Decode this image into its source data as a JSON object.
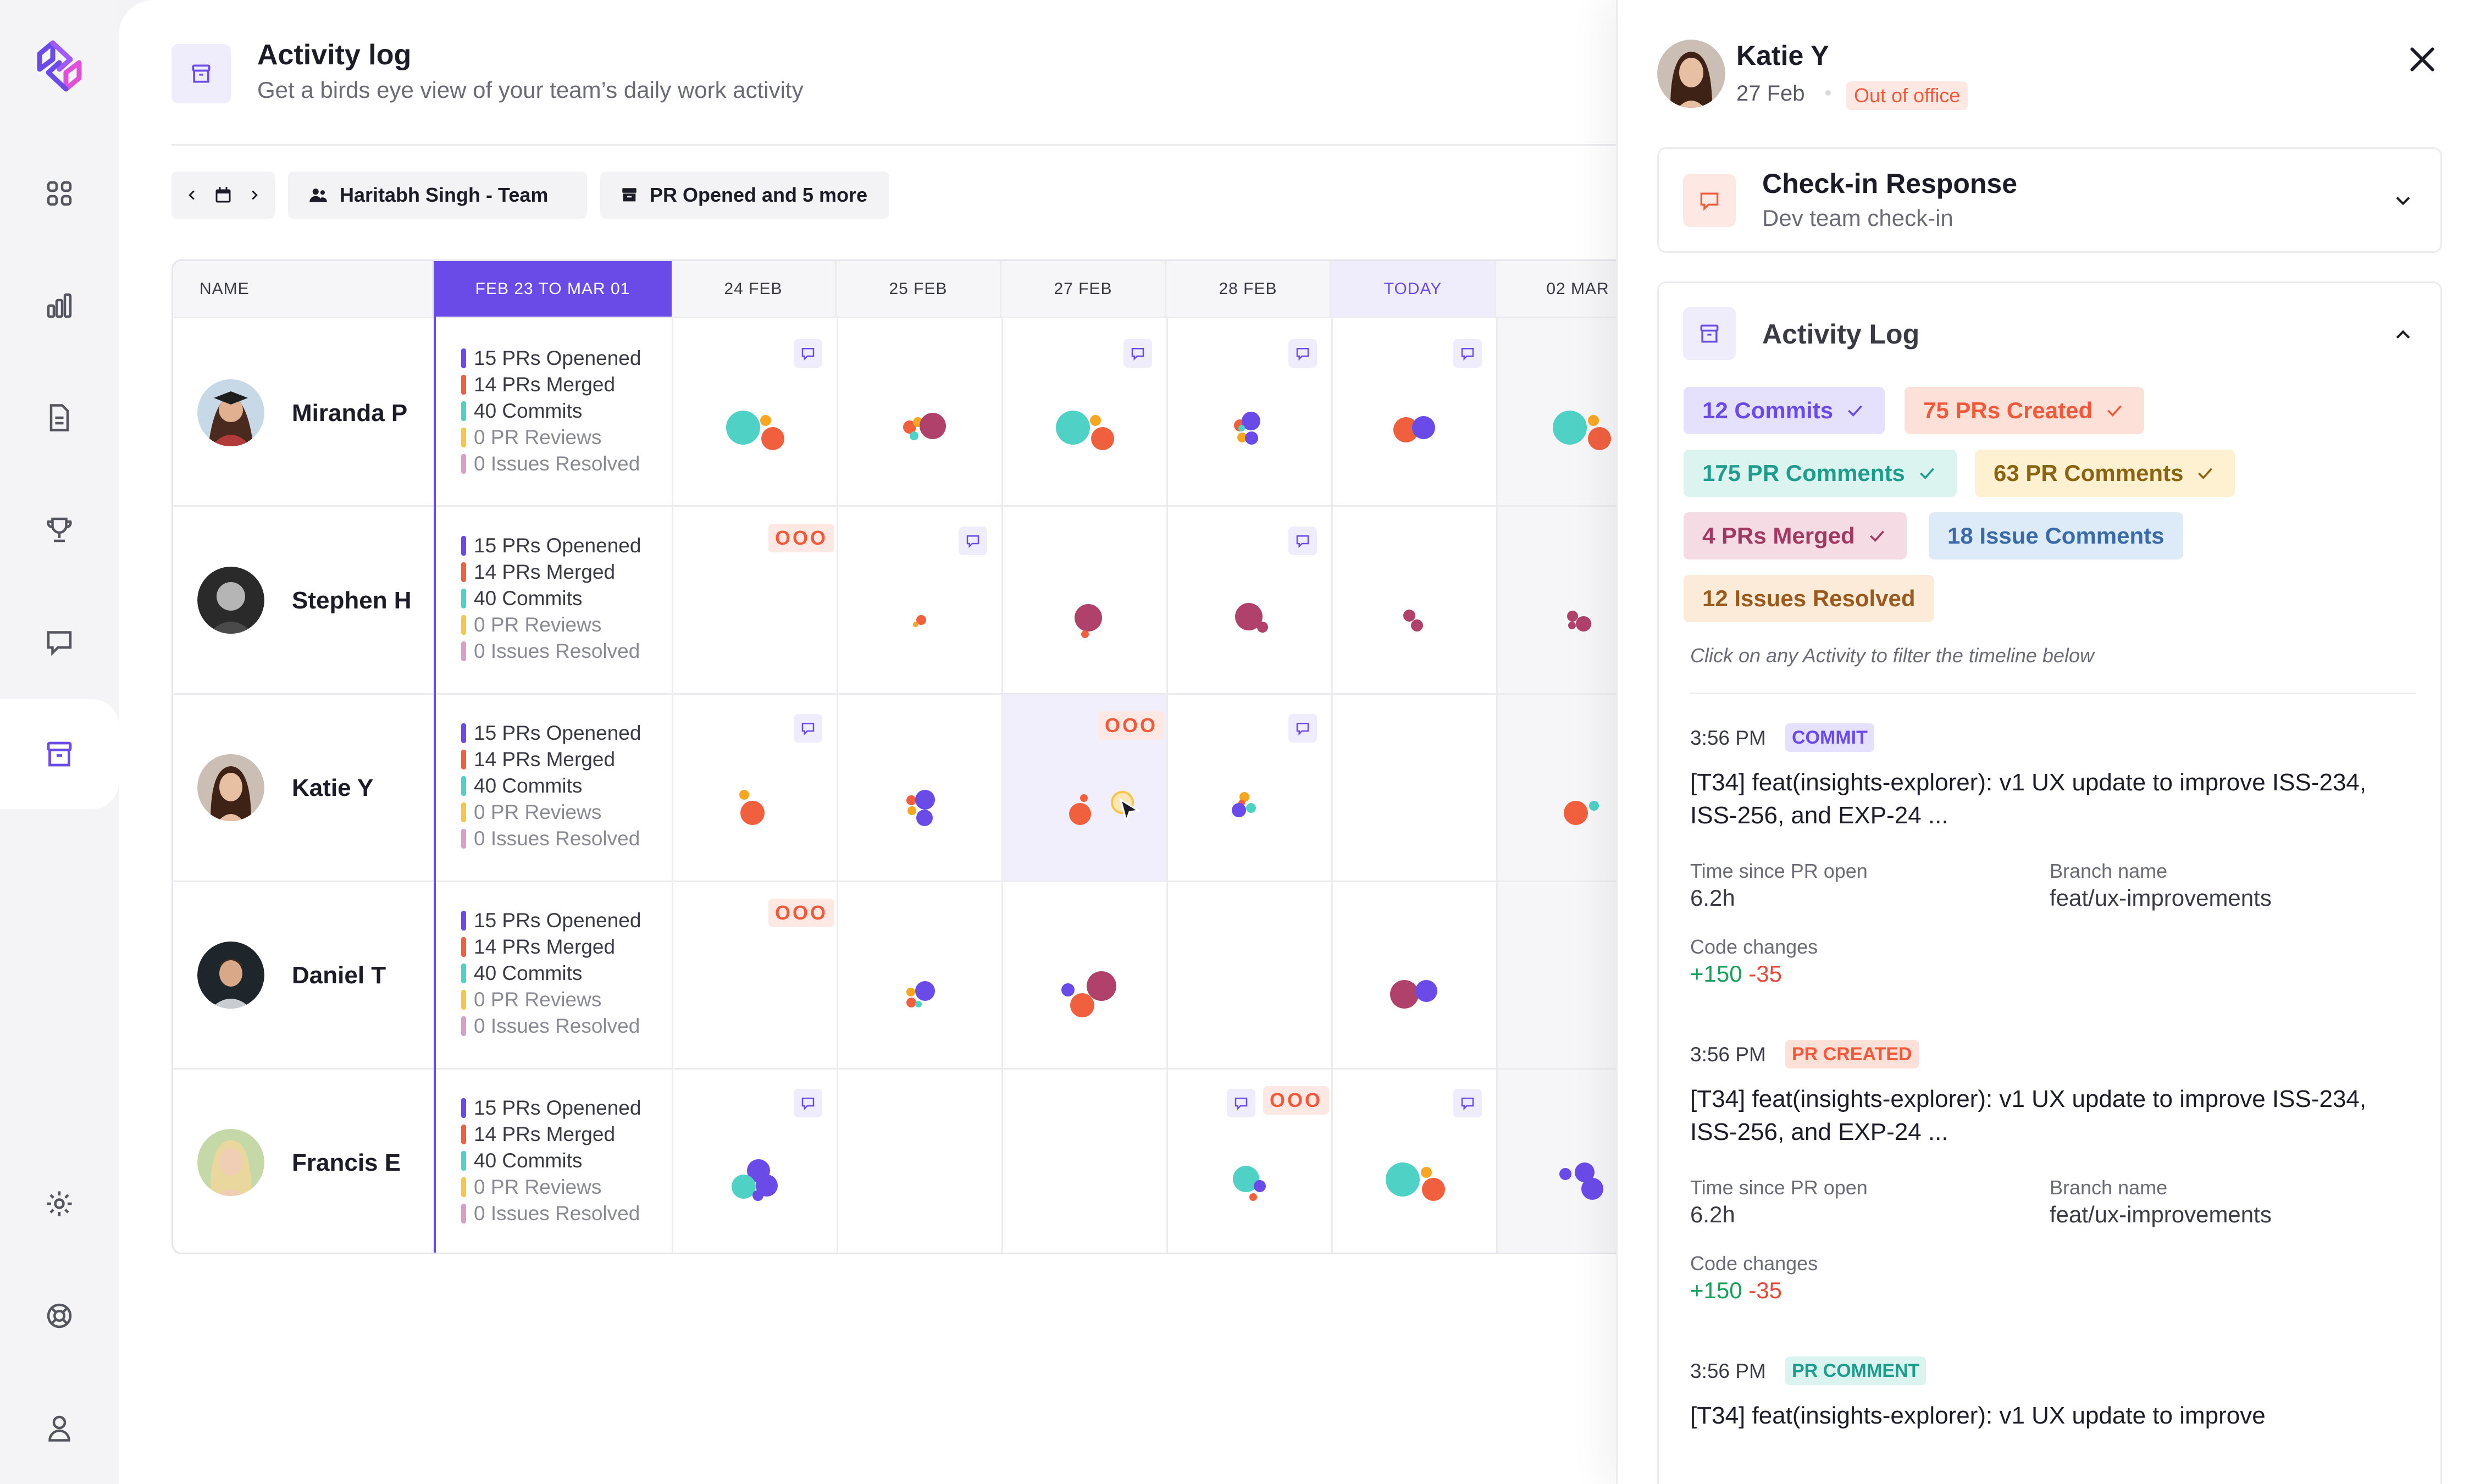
{
  "header": {
    "title": "Activity log",
    "subtitle": "Get a birds eye view of your team’s daily work activity"
  },
  "toolbar": {
    "team": "Haritabh Singh - Team",
    "filter": "PR Opened and 5 more"
  },
  "grid": {
    "name_col": "NAME",
    "week_col": "FEB 23 TO MAR 01",
    "days": [
      "24 FEB",
      "25 FEB",
      "27 FEB",
      "28 FEB",
      "TODAY",
      "02 MAR"
    ],
    "ooo_label": "OOO",
    "stat_colors": [
      "#6b4be8",
      "#f0603f",
      "#4fd1c5",
      "#f6c64a",
      "#d7a0c8"
    ],
    "rows": [
      {
        "name": "Miranda P",
        "stats": [
          "15 PRs Openened",
          "14 PRs Merged",
          "40 Commits",
          "0 PR Reviews",
          "0 Issues Resolved"
        ]
      },
      {
        "name": "Stephen H",
        "stats": [
          "15 PRs Openened",
          "14 PRs Merged",
          "40 Commits",
          "0 PR Reviews",
          "0 Issues Resolved"
        ]
      },
      {
        "name": "Katie Y",
        "stats": [
          "15 PRs Openened",
          "14 PRs Merged",
          "40 Commits",
          "0 PR Reviews",
          "0 Issues Resolved"
        ]
      },
      {
        "name": "Daniel T",
        "stats": [
          "15 PRs Openened",
          "14 PRs Merged",
          "40 Commits",
          "0 PR Reviews",
          "0 Issues Resolved"
        ]
      },
      {
        "name": "Francis E",
        "stats": [
          "15 PRs Openened",
          "14 PRs Merged",
          "40 Commits",
          "0 PR Reviews",
          "0 Issues Resolved"
        ]
      }
    ]
  },
  "panel": {
    "name": "Katie Y",
    "date": "27 Feb",
    "status": "Out of office",
    "checkin": {
      "title": "Check-in Response",
      "subtitle": "Dev team check-in"
    },
    "activity": {
      "title": "Activity Log",
      "pills": [
        "12 Commits",
        "75 PRs Created",
        "175 PR Comments",
        "63 PR Comments",
        "4 PRs Merged",
        "18 Issue Comments",
        "12 Issues Resolved"
      ],
      "hint": "Click on any Activity to filter the timeline below"
    },
    "events": [
      {
        "time": "3:56 PM",
        "type": "COMMIT",
        "title": "[T34] feat(insights-explorer): v1 UX update to improve ISS-234, ISS-256, and EXP-24 ...",
        "since_label": "Time since PR open",
        "since": "6.2h",
        "branch_label": "Branch name",
        "branch": "feat/ux-improvements",
        "changes_label": "Code changes",
        "added": "+150",
        "removed": "-35"
      },
      {
        "time": "3:56 PM",
        "type": "PR CREATED",
        "title": "[T34] feat(insights-explorer): v1 UX update to improve ISS-234, ISS-256, and EXP-24 ...",
        "since_label": "Time since PR open",
        "since": "6.2h",
        "branch_label": "Branch name",
        "branch": "feat/ux-improvements",
        "changes_label": "Code changes",
        "added": "+150",
        "removed": "-35"
      },
      {
        "time": "3:56 PM",
        "type": "PR COMMENT",
        "title": "[T34] feat(insights-explorer): v1 UX update to improve"
      }
    ]
  }
}
